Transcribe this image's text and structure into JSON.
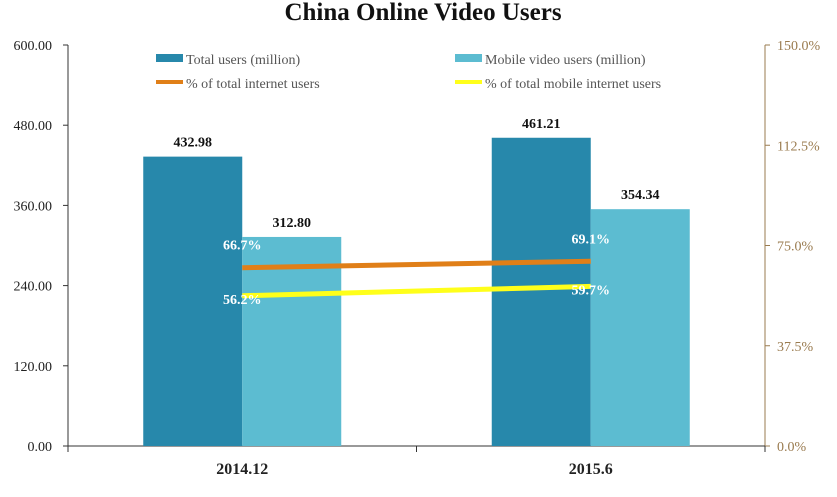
{
  "chart_data": {
    "type": "bar",
    "title": "China Online Video Users",
    "categories": [
      "2014.12",
      "2015.6"
    ],
    "y_left": {
      "range": [
        0,
        600
      ],
      "ticks": [
        "0.00",
        "120.00",
        "240.00",
        "360.00",
        "480.00",
        "600.00"
      ]
    },
    "y_right": {
      "range": [
        0,
        150
      ],
      "ticks": [
        "0.0%",
        "37.5%",
        "75.0%",
        "112.5%",
        "150.0%"
      ]
    },
    "series": [
      {
        "name": "Total users (million)",
        "type": "bar",
        "axis": "left",
        "color": "#2788ab",
        "values": [
          432.98,
          461.21
        ],
        "labels": [
          "432.98",
          "461.21"
        ]
      },
      {
        "name": "Mobile video users (million)",
        "type": "bar",
        "axis": "left",
        "color": "#5cbcd1",
        "values": [
          312.8,
          354.34
        ],
        "labels": [
          "312.80",
          "354.34"
        ]
      },
      {
        "name": "% of total internet users",
        "type": "line",
        "axis": "right",
        "color": "#e07f18",
        "values": [
          66.7,
          69.1
        ],
        "labels": [
          "66.7%",
          "69.1%"
        ]
      },
      {
        "name": "% of total mobile internet users",
        "type": "line",
        "axis": "right",
        "color": "#ffff1a",
        "values": [
          56.2,
          59.7
        ],
        "labels": [
          "56.2%",
          "59.7%"
        ]
      }
    ],
    "legend_position": "top",
    "grid": false
  }
}
